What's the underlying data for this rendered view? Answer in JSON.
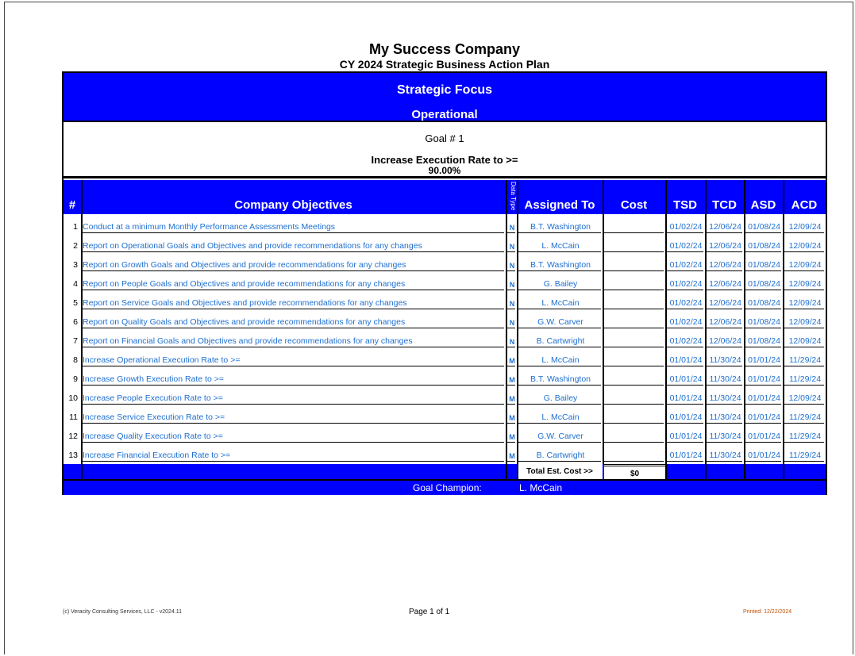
{
  "title": "My Success Company",
  "subtitle": "CY 2024 Strategic Business Action Plan",
  "focus": {
    "label": "Strategic Focus",
    "value": "Operational"
  },
  "goal": {
    "number": "Goal # 1",
    "text": "Increase Execution Rate to >=",
    "target": "90.00%"
  },
  "columns": {
    "num": "#",
    "objectives": "Company Objectives",
    "data_type": "Data Type",
    "assigned": "Assigned To",
    "cost": "Cost",
    "tsd": "TSD",
    "tcd": "TCD",
    "asd": "ASD",
    "acd": "ACD"
  },
  "rows": [
    {
      "n": "1",
      "obj": "Conduct at a minimum Monthly Performance Assessments Meetings",
      "type": "N",
      "who": "B.T. Washington",
      "cost": "",
      "tsd": "01/02/24",
      "tcd": "12/06/24",
      "asd": "01/08/24",
      "acd": "12/09/24"
    },
    {
      "n": "2",
      "obj": "Report on Operational Goals and Objectives and provide recommendations for any changes",
      "type": "N",
      "who": "L. McCain",
      "cost": "",
      "tsd": "01/02/24",
      "tcd": "12/06/24",
      "asd": "01/08/24",
      "acd": "12/09/24"
    },
    {
      "n": "3",
      "obj": "Report on Growth Goals and Objectives and provide recommendations for any changes",
      "type": "N",
      "who": "B.T. Washington",
      "cost": "",
      "tsd": "01/02/24",
      "tcd": "12/06/24",
      "asd": "01/08/24",
      "acd": "12/09/24"
    },
    {
      "n": "4",
      "obj": "Report on People Goals and Objectives and provide recommendations for any changes",
      "type": "N",
      "who": "G. Bailey",
      "cost": "",
      "tsd": "01/02/24",
      "tcd": "12/06/24",
      "asd": "01/08/24",
      "acd": "12/09/24"
    },
    {
      "n": "5",
      "obj": "Report on Service Goals and Objectives and provide recommendations for any changes",
      "type": "N",
      "who": "L. McCain",
      "cost": "",
      "tsd": "01/02/24",
      "tcd": "12/06/24",
      "asd": "01/08/24",
      "acd": "12/09/24"
    },
    {
      "n": "6",
      "obj": "Report on Quality Goals and Objectives and provide recommendations for any changes",
      "type": "N",
      "who": "G.W. Carver",
      "cost": "",
      "tsd": "01/02/24",
      "tcd": "12/06/24",
      "asd": "01/08/24",
      "acd": "12/09/24"
    },
    {
      "n": "7",
      "obj": "Report on Financial Goals and Objectives and provide recommendations for any changes",
      "type": "N",
      "who": "B. Cartwright",
      "cost": "",
      "tsd": "01/02/24",
      "tcd": "12/06/24",
      "asd": "01/08/24",
      "acd": "12/09/24"
    },
    {
      "n": "8",
      "obj": "Increase Operational Execution Rate to >=",
      "type": "M",
      "who": "L. McCain",
      "cost": "",
      "tsd": "01/01/24",
      "tcd": "11/30/24",
      "asd": "01/01/24",
      "acd": "11/29/24"
    },
    {
      "n": "9",
      "obj": "Increase Growth Execution Rate to >=",
      "type": "M",
      "who": "B.T. Washington",
      "cost": "",
      "tsd": "01/01/24",
      "tcd": "11/30/24",
      "asd": "01/01/24",
      "acd": "11/29/24"
    },
    {
      "n": "10",
      "obj": "Increase People Execution Rate to >=",
      "type": "M",
      "who": "G. Bailey",
      "cost": "",
      "tsd": "01/01/24",
      "tcd": "11/30/24",
      "asd": "01/01/24",
      "acd": "12/09/24"
    },
    {
      "n": "11",
      "obj": "Increase Service Execution Rate to >=",
      "type": "M",
      "who": "L. McCain",
      "cost": "",
      "tsd": "01/01/24",
      "tcd": "11/30/24",
      "asd": "01/01/24",
      "acd": "11/29/24"
    },
    {
      "n": "12",
      "obj": "Increase Quality Execution Rate to >=",
      "type": "M",
      "who": "G.W. Carver",
      "cost": "",
      "tsd": "01/01/24",
      "tcd": "11/30/24",
      "asd": "01/01/24",
      "acd": "11/29/24"
    },
    {
      "n": "13",
      "obj": "Increase Financial Execution Rate to >=",
      "type": "M",
      "who": "B. Cartwright",
      "cost": "",
      "tsd": "01/01/24",
      "tcd": "11/30/24",
      "asd": "01/01/24",
      "acd": "11/29/24"
    }
  ],
  "totals": {
    "label": "Total Est. Cost >>",
    "value": "$0"
  },
  "champion": {
    "label": "Goal Champion:",
    "name": "L. McCain"
  },
  "footer": {
    "copyright": "(c) Veracity Consulting Services, LLC - v2024.11",
    "page": "Page 1 of 1",
    "printed": "Printed: 12/22/2024"
  },
  "colors": {
    "header_blue": "#0000ff",
    "text_blue": "#1e6fd0"
  }
}
